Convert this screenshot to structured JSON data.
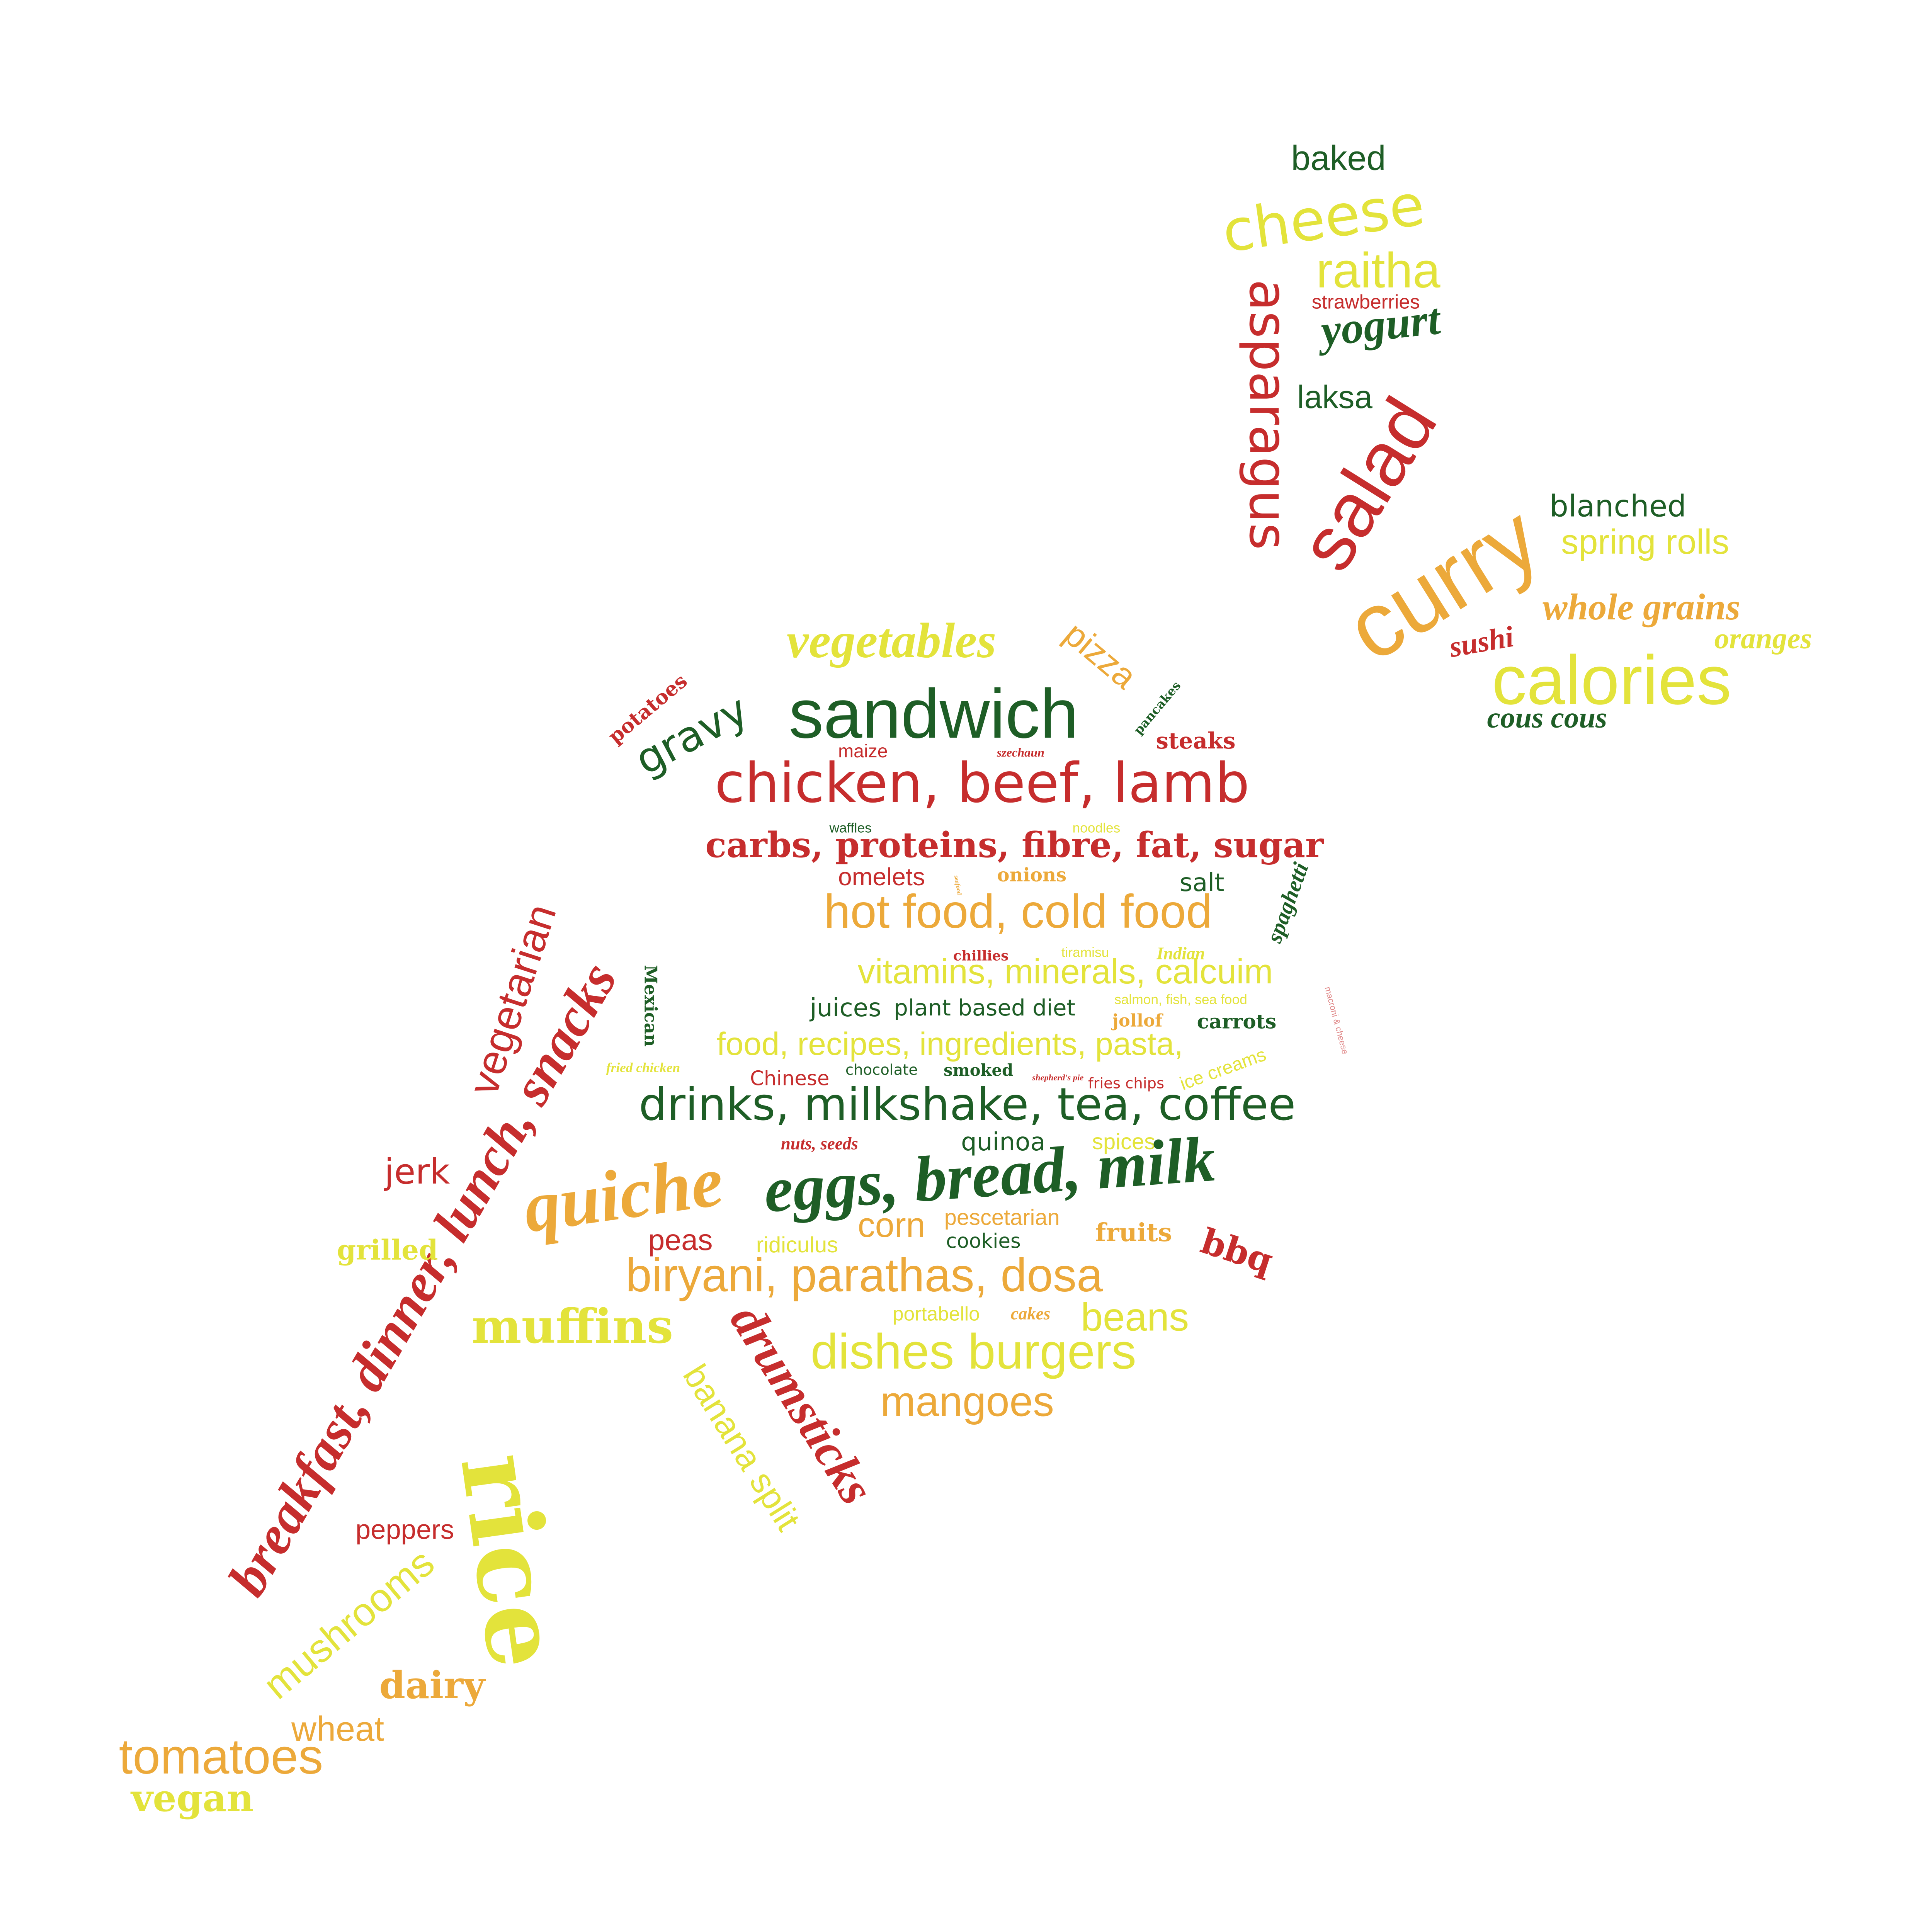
{
  "palette": {
    "red": "#c62d2d",
    "dark_green": "#1e5e26",
    "orange": "#eca93a",
    "yellow": "#e3e33b",
    "pink": "#e08a8a"
  },
  "words": [
    {
      "text": "baked",
      "color": "dark_green"
    },
    {
      "text": "cheese",
      "color": "yellow"
    },
    {
      "text": "raitha",
      "color": "yellow"
    },
    {
      "text": "strawberries",
      "color": "red"
    },
    {
      "text": "yogurt",
      "color": "dark_green"
    },
    {
      "text": "asparagus",
      "color": "red"
    },
    {
      "text": "laksa",
      "color": "dark_green"
    },
    {
      "text": "salad",
      "color": "red"
    },
    {
      "text": "blanched",
      "color": "dark_green"
    },
    {
      "text": "spring rolls",
      "color": "yellow"
    },
    {
      "text": "curry",
      "color": "orange"
    },
    {
      "text": "whole grains",
      "color": "orange"
    },
    {
      "text": "sushi",
      "color": "red"
    },
    {
      "text": "oranges",
      "color": "yellow"
    },
    {
      "text": "calories",
      "color": "yellow"
    },
    {
      "text": "cous cous",
      "color": "dark_green"
    },
    {
      "text": "vegetables",
      "color": "yellow"
    },
    {
      "text": "pizza",
      "color": "orange"
    },
    {
      "text": "potatoes",
      "color": "red"
    },
    {
      "text": "gravy",
      "color": "dark_green"
    },
    {
      "text": "sandwich",
      "color": "dark_green"
    },
    {
      "text": "pancakes",
      "color": "dark_green"
    },
    {
      "text": "steaks",
      "color": "red"
    },
    {
      "text": "maize",
      "color": "red"
    },
    {
      "text": "szechaun",
      "color": "red"
    },
    {
      "text": "chicken, beef, lamb",
      "color": "red"
    },
    {
      "text": "waffles",
      "color": "dark_green"
    },
    {
      "text": "noodles",
      "color": "yellow"
    },
    {
      "text": "carbs, proteins, fibre, fat, sugar",
      "color": "red"
    },
    {
      "text": "omelets",
      "color": "red"
    },
    {
      "text": "onions",
      "color": "orange"
    },
    {
      "text": "salt",
      "color": "dark_green"
    },
    {
      "text": "spaghetti",
      "color": "dark_green"
    },
    {
      "text": "hot food, cold food",
      "color": "orange"
    },
    {
      "text": "vegetarian",
      "color": "red"
    },
    {
      "text": "breakfast, dinner, lunch, snacks",
      "color": "red"
    },
    {
      "text": "Mexican",
      "color": "dark_green"
    },
    {
      "text": "chillies",
      "color": "red"
    },
    {
      "text": "tiramisu",
      "color": "yellow"
    },
    {
      "text": "Indian",
      "color": "yellow"
    },
    {
      "text": "vitamins, minerals, calcuim",
      "color": "yellow"
    },
    {
      "text": "juices",
      "color": "dark_green"
    },
    {
      "text": "plant based diet",
      "color": "dark_green"
    },
    {
      "text": "salmon, fish, sea food",
      "color": "yellow"
    },
    {
      "text": "jollof",
      "color": "orange"
    },
    {
      "text": "carrots",
      "color": "dark_green"
    },
    {
      "text": "macroni & cheese",
      "color": "pink"
    },
    {
      "text": "food, recipes, ingredients, pasta,",
      "color": "yellow"
    },
    {
      "text": "fried chicken",
      "color": "yellow"
    },
    {
      "text": "Chinese",
      "color": "red"
    },
    {
      "text": "chocolate",
      "color": "dark_green"
    },
    {
      "text": "smoked",
      "color": "dark_green"
    },
    {
      "text": "shepherd's pie",
      "color": "red"
    },
    {
      "text": "fries chips",
      "color": "red"
    },
    {
      "text": "ice creams",
      "color": "yellow"
    },
    {
      "text": "drinks, milkshake, tea, coffee",
      "color": "dark_green"
    },
    {
      "text": "nuts, seeds",
      "color": "red"
    },
    {
      "text": "quinoa",
      "color": "dark_green"
    },
    {
      "text": "spices",
      "color": "yellow"
    },
    {
      "text": "jerk",
      "color": "red"
    },
    {
      "text": "quiche",
      "color": "orange"
    },
    {
      "text": "eggs, bread, milk",
      "color": "dark_green"
    },
    {
      "text": "grilled",
      "color": "yellow"
    },
    {
      "text": "peas",
      "color": "red"
    },
    {
      "text": "ridiculus",
      "color": "yellow"
    },
    {
      "text": "corn",
      "color": "orange"
    },
    {
      "text": "pescetarian",
      "color": "orange"
    },
    {
      "text": "cookies",
      "color": "dark_green"
    },
    {
      "text": "fruits",
      "color": "orange"
    },
    {
      "text": "bbq",
      "color": "red"
    },
    {
      "text": "biryani, parathas, dosa",
      "color": "orange"
    },
    {
      "text": "muffins",
      "color": "yellow"
    },
    {
      "text": "portabello",
      "color": "yellow"
    },
    {
      "text": "cakes",
      "color": "orange"
    },
    {
      "text": "beans",
      "color": "yellow"
    },
    {
      "text": "drumsticks",
      "color": "red"
    },
    {
      "text": "dishes burgers",
      "color": "yellow"
    },
    {
      "text": "banana split",
      "color": "yellow"
    },
    {
      "text": "mangoes",
      "color": "orange"
    },
    {
      "text": "rice",
      "color": "yellow"
    },
    {
      "text": "peppers",
      "color": "red"
    },
    {
      "text": "mushrooms",
      "color": "yellow"
    },
    {
      "text": "dairy",
      "color": "orange"
    },
    {
      "text": "wheat",
      "color": "orange"
    },
    {
      "text": "tomatoes",
      "color": "orange"
    },
    {
      "text": "vegan",
      "color": "yellow"
    },
    {
      "text": "seafood",
      "color": "orange"
    }
  ]
}
